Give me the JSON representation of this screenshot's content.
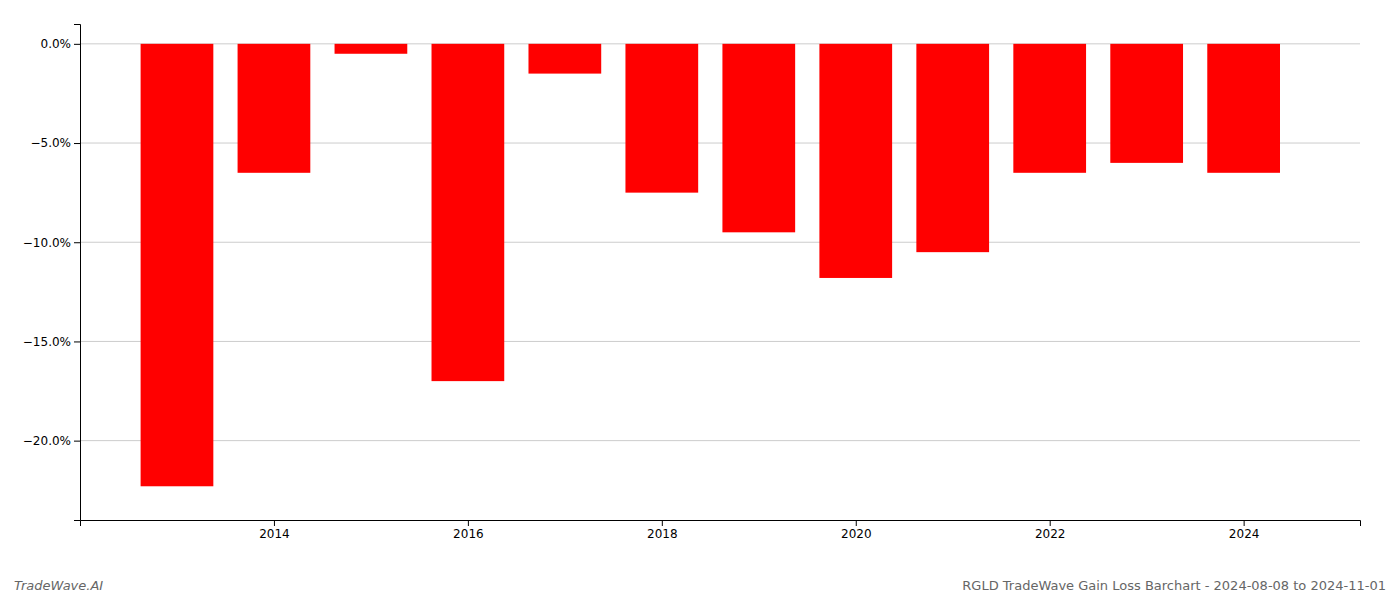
{
  "chart_data": {
    "type": "bar",
    "x": [
      2013,
      2014,
      2015,
      2016,
      2017,
      2018,
      2019,
      2020,
      2021,
      2022,
      2023,
      2024
    ],
    "values": [
      -22.3,
      -6.5,
      -0.5,
      -17.0,
      -1.5,
      -7.5,
      -9.5,
      -11.8,
      -10.5,
      -6.5,
      -6.0,
      -6.5
    ],
    "color": "#ff0000",
    "xlim": [
      2012.0,
      2025.2
    ],
    "xticks": [
      2014,
      2016,
      2018,
      2020,
      2022,
      2024
    ],
    "ylim": [
      -24,
      1.0
    ],
    "yticks": [
      {
        "value": 0.0,
        "label": "0.0%"
      },
      {
        "value": -5.0,
        "label": "−5.0%"
      },
      {
        "value": -10.0,
        "label": "−10.0%"
      },
      {
        "value": -15.0,
        "label": "−15.0%"
      },
      {
        "value": -20.0,
        "label": "−20.0%"
      }
    ],
    "grid": true,
    "annotations": [
      "TradeWave.AI",
      "RGLD TradeWave Gain Loss Barchart - 2024-08-08 to 2024-11-01"
    ]
  }
}
